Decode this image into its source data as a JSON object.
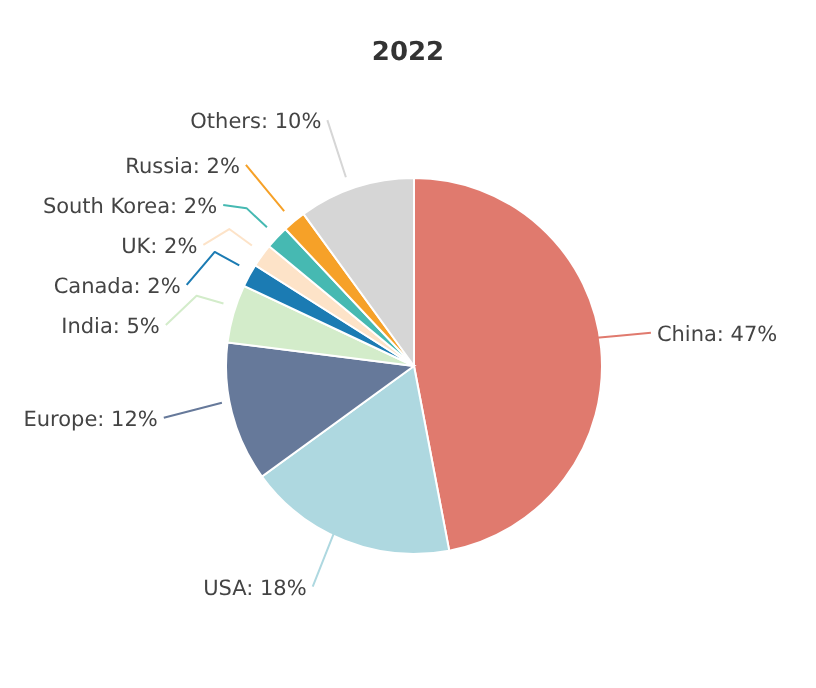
{
  "chart_data": {
    "type": "pie",
    "title": "2022",
    "categories": [
      "China",
      "USA",
      "Europe",
      "India",
      "Canada",
      "UK",
      "South Korea",
      "Russia",
      "Others"
    ],
    "values": [
      47,
      18,
      12,
      5,
      2,
      2,
      2,
      2,
      10
    ],
    "value_labels": [
      "47%",
      "18%",
      "12%",
      "5%",
      "2%",
      "2%",
      "2%",
      "2%",
      "10%"
    ],
    "colors": [
      "#e07a6e",
      "#aed8e0",
      "#66799a",
      "#d3ecca",
      "#1b7bb3",
      "#fde3c8",
      "#46b9b2",
      "#f6a128",
      "#d6d6d6"
    ]
  }
}
